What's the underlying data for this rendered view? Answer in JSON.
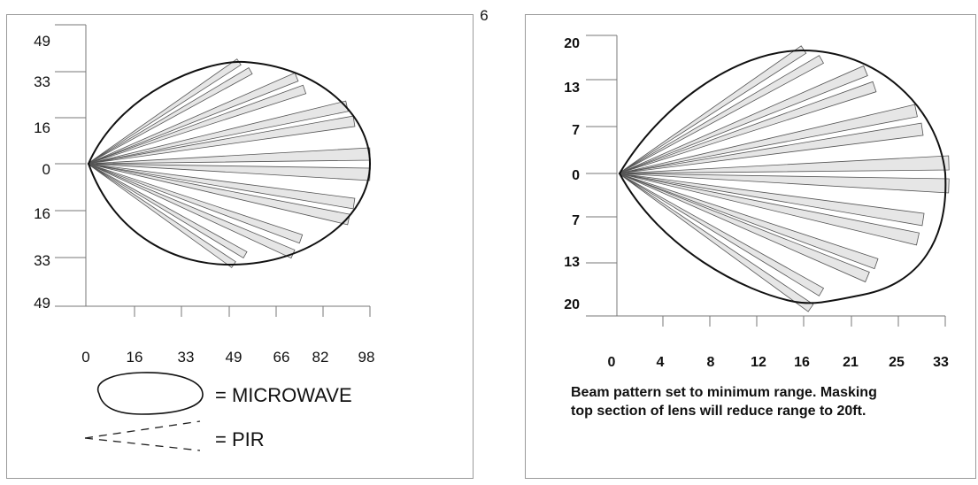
{
  "page_number": "6",
  "left_diagram": {
    "y_ticks": [
      "49",
      "33",
      "16",
      "0",
      "16",
      "33",
      "49"
    ],
    "x_ticks": [
      "0",
      "16",
      "33",
      "49",
      "66",
      "82",
      "98"
    ],
    "legend": {
      "microwave_label": "= MICROWAVE",
      "pir_label": "= PIR"
    }
  },
  "right_diagram": {
    "y_ticks": [
      "20",
      "13",
      "7",
      "0",
      "7",
      "13",
      "20"
    ],
    "x_ticks": [
      "0",
      "4",
      "8",
      "12",
      "16",
      "21",
      "25",
      "33"
    ],
    "note_lines": [
      "Beam pattern set to minimum range.  Masking",
      "top section of lens will reduce range to 20ft."
    ]
  },
  "colors": {
    "outline": "#111111",
    "beam_fill": "#e6e6e6",
    "beam_stroke": "#555555",
    "axis": "#777777"
  }
}
